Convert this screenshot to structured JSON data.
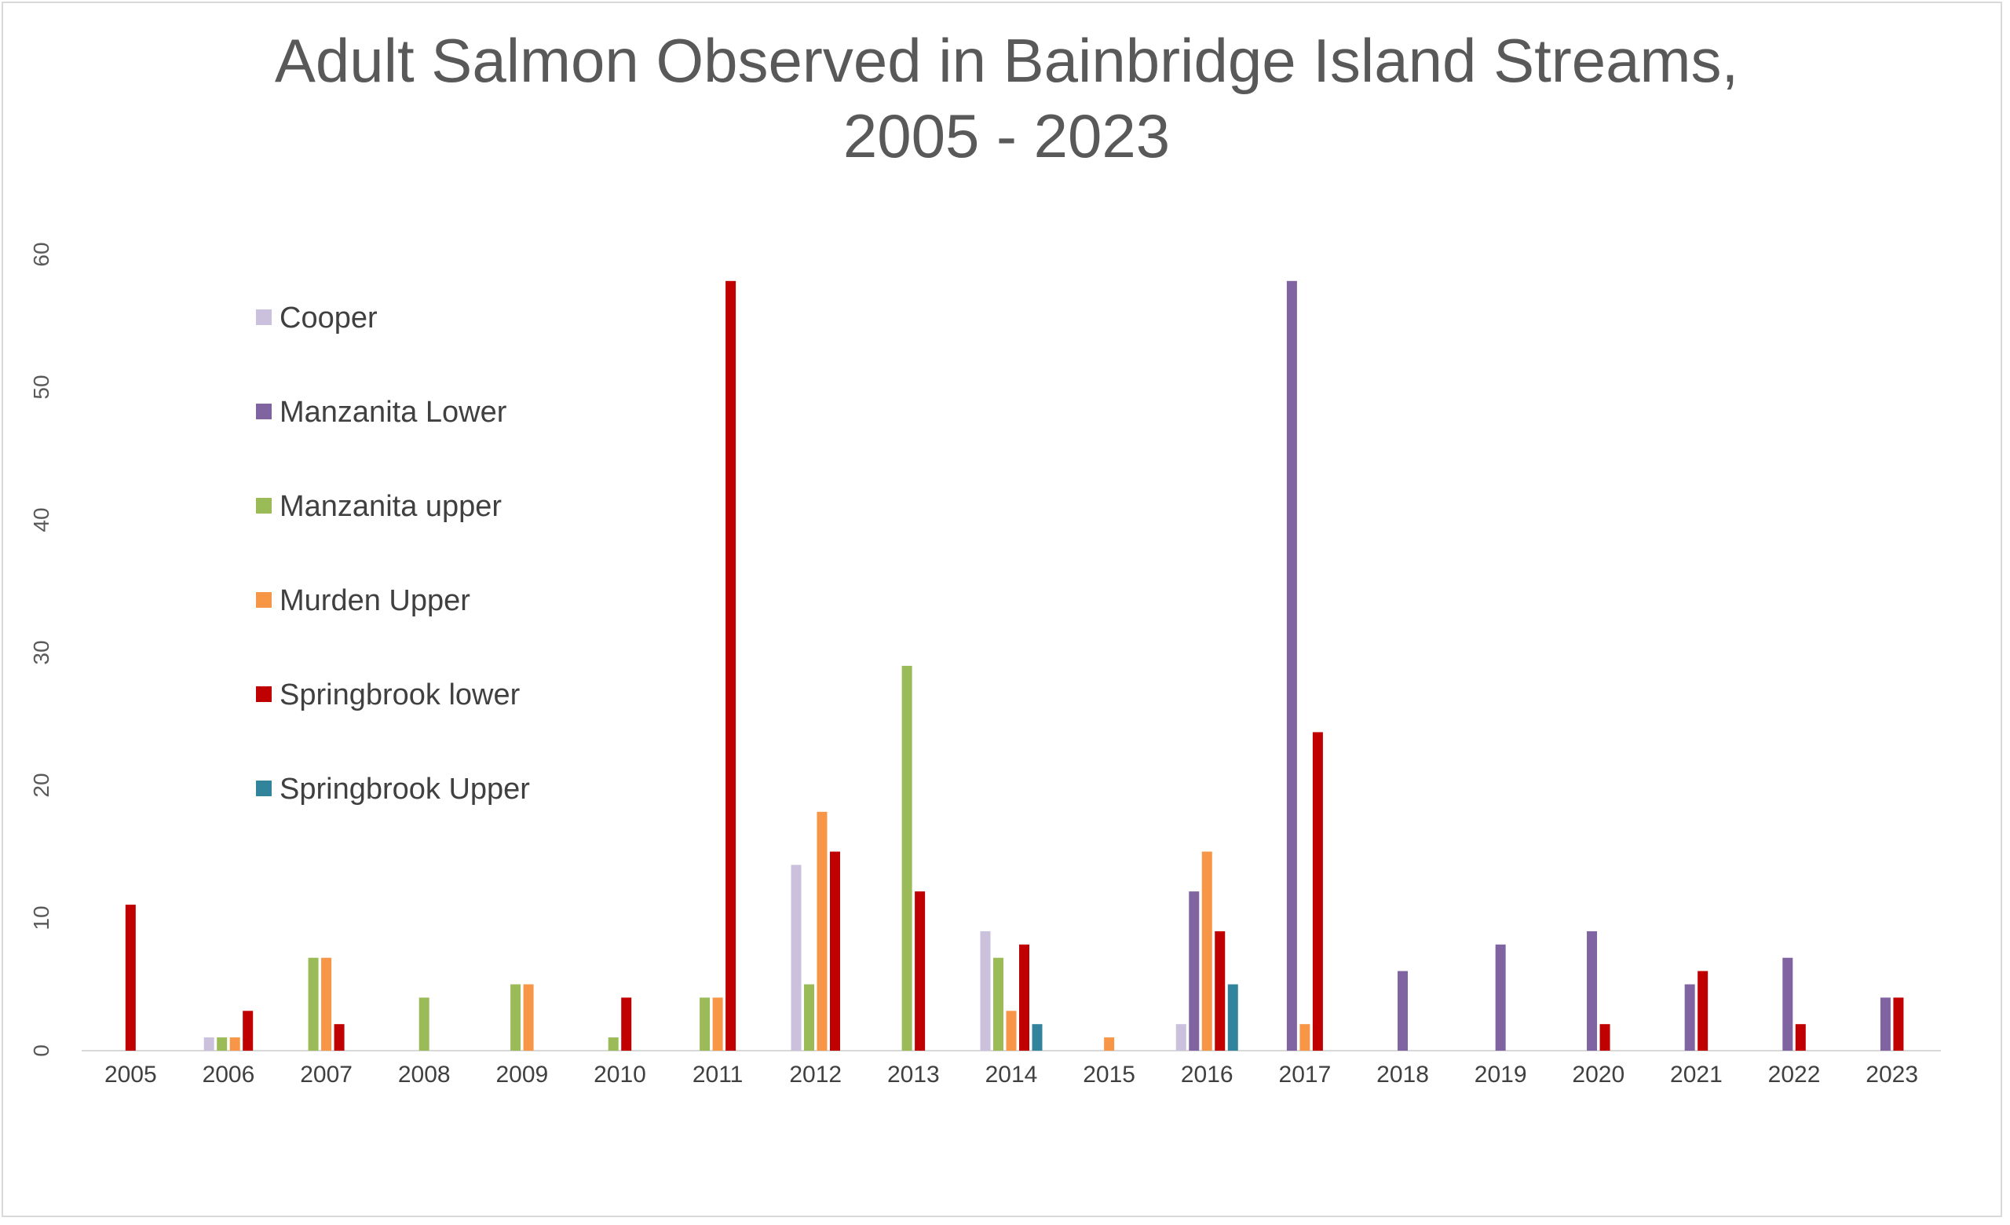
{
  "chart_data": {
    "type": "bar",
    "title_lines": [
      "Adult Salmon Observed in Bainbridge Island Streams,",
      "2005 - 2023"
    ],
    "xlabel": "",
    "ylabel": "",
    "ylim": [
      0,
      60
    ],
    "yticks": [
      "0",
      "10",
      "20",
      "30",
      "40",
      "50",
      "60"
    ],
    "grid": false,
    "legend_position": "upper-left",
    "categories": [
      "2005",
      "2006",
      "2007",
      "2008",
      "2009",
      "2010",
      "2011",
      "2012",
      "2013",
      "2014",
      "2015",
      "2016",
      "2017",
      "2018",
      "2019",
      "2020",
      "2021",
      "2022",
      "2023"
    ],
    "series": [
      {
        "name": "Cooper",
        "color": "#cbc1dc",
        "values": [
          0,
          1,
          0,
          0,
          0,
          0,
          0,
          14,
          0,
          9,
          0,
          2,
          0,
          0,
          0,
          0,
          0,
          0,
          0
        ]
      },
      {
        "name": "Manzanita Lower",
        "color": "#8064a2",
        "values": [
          0,
          0,
          0,
          0,
          0,
          0,
          0,
          0,
          0,
          0,
          0,
          12,
          58,
          6,
          8,
          9,
          5,
          7,
          4
        ]
      },
      {
        "name": "Manzanita upper",
        "color": "#9bbb59",
        "values": [
          0,
          1,
          7,
          4,
          5,
          1,
          4,
          5,
          29,
          7,
          0,
          0,
          0,
          0,
          0,
          0,
          0,
          0,
          0
        ]
      },
      {
        "name": "Murden Upper",
        "color": "#f79646",
        "values": [
          0,
          1,
          7,
          0,
          5,
          0,
          4,
          18,
          0,
          3,
          1,
          15,
          2,
          0,
          0,
          0,
          0,
          0,
          0
        ]
      },
      {
        "name": "Springbrook lower",
        "color": "#c00000",
        "values": [
          11,
          3,
          2,
          0,
          0,
          4,
          58,
          15,
          12,
          8,
          0,
          9,
          24,
          0,
          0,
          2,
          6,
          2,
          4
        ]
      },
      {
        "name": "Springbrook Upper",
        "color": "#31849b",
        "values": [
          0,
          0,
          0,
          0,
          0,
          0,
          0,
          0,
          0,
          2,
          0,
          5,
          0,
          0,
          0,
          0,
          0,
          0,
          0
        ]
      }
    ]
  }
}
